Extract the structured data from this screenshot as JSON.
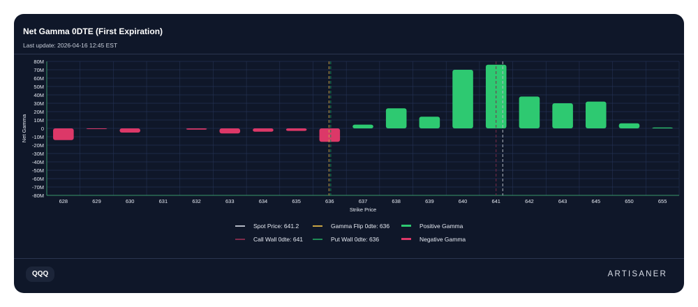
{
  "header": {
    "title": "Net Gamma 0DTE (First Expiration)",
    "subtitle": "Last update: 2026-04-16 12:45 EST"
  },
  "footer": {
    "ticker": "QQQ",
    "brand": "ARTISANER"
  },
  "colors": {
    "card": "#0f1729",
    "positive": "#2ec971",
    "negative": "#dc3868",
    "spot": "#b4b9c4",
    "flip": "#c9a544",
    "call_wall": "#7d2b4a",
    "put_wall": "#1f8a55",
    "grid": "#243253",
    "axis": "#3a9a6a"
  },
  "legend": [
    {
      "label": "Spot Price: 641.2",
      "key": "spot"
    },
    {
      "label": "Gamma Flip 0dte: 636",
      "key": "flip"
    },
    {
      "label": "Positive Gamma",
      "key": "positive"
    },
    {
      "label": "Call Wall 0dte: 641",
      "key": "call_wall"
    },
    {
      "label": "Put Wall 0dte: 636",
      "key": "put_wall"
    },
    {
      "label": "Negative Gamma",
      "key": "negative"
    }
  ],
  "chart_data": {
    "type": "bar",
    "title": "Net Gamma 0DTE (First Expiration)",
    "xlabel": "Strike Price",
    "ylabel": "Net Gamma",
    "categories": [
      "628",
      "629",
      "630",
      "631",
      "632",
      "633",
      "634",
      "635",
      "636",
      "637",
      "638",
      "639",
      "640",
      "641",
      "642",
      "643",
      "645",
      "650",
      "655"
    ],
    "values": [
      -14,
      -0.5,
      -5,
      0,
      -1.5,
      -6,
      -4,
      -3,
      -16,
      4.5,
      24,
      14,
      70,
      76,
      38,
      30,
      32,
      6,
      1
    ],
    "unit": "M",
    "ylim": [
      -80,
      80
    ],
    "yticks": [
      80,
      70,
      60,
      50,
      40,
      30,
      20,
      10,
      0,
      -10,
      -20,
      -30,
      -40,
      -50,
      -60,
      -70,
      -80
    ],
    "ytick_labels": [
      "80M",
      "70M",
      "60M",
      "50M",
      "40M",
      "30M",
      "20M",
      "10M",
      "0",
      "-10M",
      "-20M",
      "-30M",
      "-40M",
      "-50M",
      "-60M",
      "-70M",
      "-80M"
    ],
    "reference_lines": [
      {
        "name": "Spot Price",
        "value": 641.2,
        "key": "spot"
      },
      {
        "name": "Gamma Flip 0dte",
        "value": 636,
        "key": "flip"
      },
      {
        "name": "Call Wall 0dte",
        "value": 641,
        "key": "call_wall"
      },
      {
        "name": "Put Wall 0dte",
        "value": 636,
        "key": "put_wall"
      }
    ],
    "grid": true
  }
}
